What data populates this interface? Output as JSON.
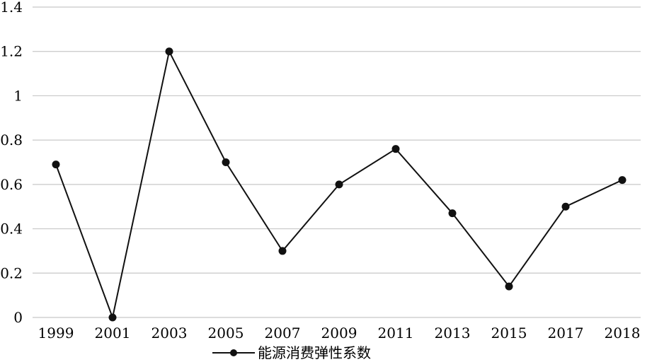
{
  "chart_data": {
    "type": "line",
    "categories": [
      "1999",
      "2001",
      "2003",
      "2005",
      "2007",
      "2009",
      "2011",
      "2013",
      "2015",
      "2017",
      "2018"
    ],
    "series": [
      {
        "name": "能源消费弹性系数",
        "values": [
          0.69,
          0.0,
          1.2,
          0.7,
          0.3,
          0.6,
          0.76,
          0.47,
          0.14,
          0.5,
          0.62
        ],
        "color": "#111111",
        "marker": "circle"
      }
    ],
    "y_ticks": [
      "0",
      "0.2",
      "0.4",
      "0.6",
      "0.8",
      "1",
      "1.2",
      "1.4"
    ],
    "ylim": [
      0,
      1.4
    ],
    "grid": "horizontal",
    "legend_position": "bottom",
    "title": "",
    "xlabel": "",
    "ylabel": ""
  }
}
